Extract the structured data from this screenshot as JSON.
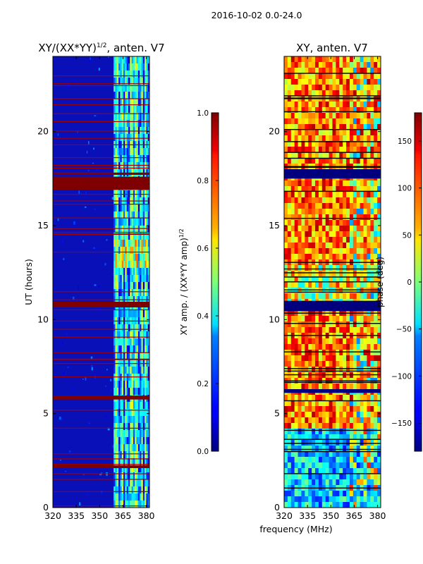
{
  "figure": {
    "suptitle": "2016-10-02 0.0-24.0",
    "xlabel_shared": "frequency (MHz)"
  },
  "chart_data": [
    {
      "type": "heatmap",
      "title_main": "XY/(XX*YY)",
      "title_sup": "1/2",
      "title_rest": ", anten. V7",
      "ylabel": "UT (hours)",
      "xlim": [
        320,
        382
      ],
      "ylim": [
        0,
        24
      ],
      "xticks": [
        320,
        335,
        350,
        365,
        380
      ],
      "yticks": [
        0,
        5,
        10,
        15,
        20
      ],
      "saturated_bands_hours": [
        [
          16.9,
          17.6
        ],
        [
          10.65,
          10.95
        ],
        [
          5.75,
          5.95
        ],
        [
          2.1,
          2.25
        ],
        [
          17.7,
          17.8
        ]
      ],
      "bright_band_mhz": [
        359,
        382
      ],
      "colorbar": {
        "label_main": "XY amp. / (XX*YY amp)",
        "label_sup": "1/2",
        "range": [
          0.0,
          1.0
        ],
        "ticks": [
          "0.0",
          "0.2",
          "0.4",
          "0.6",
          "0.8",
          "1.0"
        ]
      }
    },
    {
      "type": "heatmap",
      "title": "XY, anten. V7",
      "xlim": [
        320,
        382
      ],
      "ylim": [
        0,
        24
      ],
      "xticks": [
        320,
        335,
        350,
        365,
        380
      ],
      "yticks": [
        0,
        5,
        10,
        15,
        20
      ],
      "flagged_bands_hours": [
        [
          17.5,
          18.0
        ],
        [
          10.45,
          11.0
        ],
        [
          6.1,
          6.3
        ]
      ],
      "colorbar": {
        "label": "phase (deg)",
        "range": [
          -180,
          180
        ],
        "ticks": [
          "-150",
          "-100",
          "-50",
          "0",
          "50",
          "100",
          "150"
        ]
      }
    }
  ],
  "colors": {
    "jet_low": "#00007f",
    "jet_high": "#7f0000",
    "axis": "#000000"
  }
}
